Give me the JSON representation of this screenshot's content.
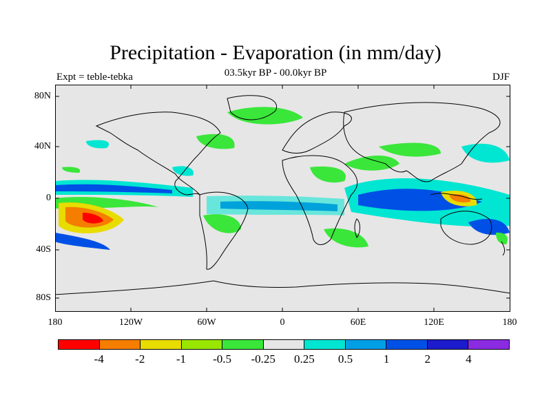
{
  "title": "Precipitation - Evaporation (in mm/day)",
  "subtitle": "03.5kyr BP - 00.0kyr BP",
  "expt_label": "Expt = teble-tebka",
  "season": "DJF",
  "lat_labels": [
    "80N",
    "40N",
    "0",
    "40S",
    "80S"
  ],
  "lon_labels": [
    "180",
    "120W",
    "60W",
    "0",
    "60E",
    "120E",
    "180"
  ],
  "colorbar": {
    "colors": [
      "#ff0000",
      "#f57d00",
      "#e8dc00",
      "#99e600",
      "#3ae63a",
      "#e6e6e6",
      "#00e6d2",
      "#009fe6",
      "#0050e6",
      "#1c1ccc",
      "#8a2be2"
    ],
    "labels": [
      "-4",
      "-2",
      "-1",
      "-0.5",
      "-0.25",
      "0.25",
      "0.5",
      "1",
      "2",
      "4"
    ]
  },
  "map": {
    "ocean_color": "#e6e6e6",
    "coastline_color": "#000000"
  }
}
